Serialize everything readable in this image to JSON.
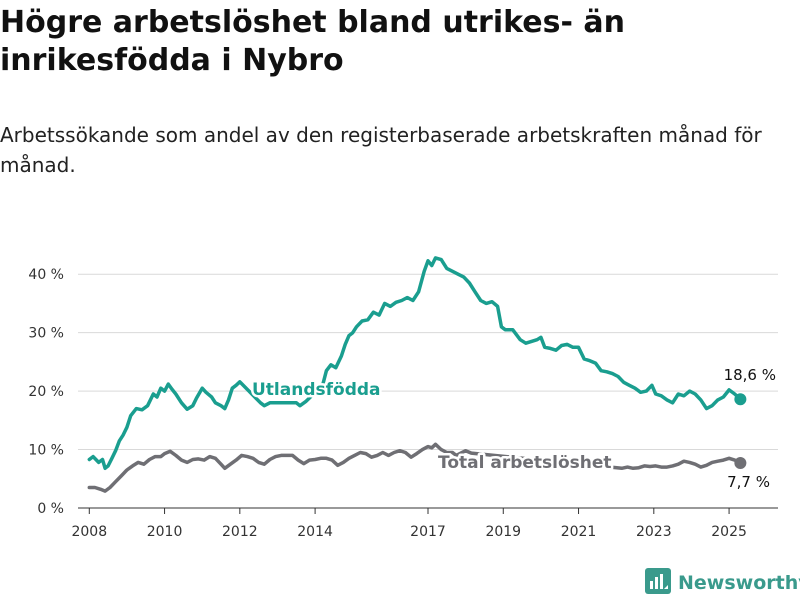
{
  "title": "Högre arbetslöshet bland utrikes- än inrikesfödda i Nybro",
  "subtitle": "Arbetssökande som andel av den registerbaserade arbetskraften månad för månad.",
  "brand": {
    "name": "Newsworthy",
    "icon": "newsworthy-logo-icon"
  },
  "colors": {
    "utlandsfodda": "#1a9e8f",
    "total": "#6f6f74",
    "grid": "#d9d9d9"
  },
  "chart_data": {
    "type": "line",
    "y_ticks": [
      "0 %",
      "10 %",
      "20 %",
      "30 %",
      "40 %"
    ],
    "ylim": [
      0,
      45
    ],
    "xlim": [
      2007.7,
      2026.3
    ],
    "x_ticks": [
      {
        "value": 2008,
        "label": "2008"
      },
      {
        "value": 2010,
        "label": "2010"
      },
      {
        "value": 2012,
        "label": "2012"
      },
      {
        "value": 2014,
        "label": "2014"
      },
      {
        "value": 2017,
        "label": "2017"
      },
      {
        "value": 2019,
        "label": "2019"
      },
      {
        "value": 2021,
        "label": "2021"
      },
      {
        "value": 2023,
        "label": "2023"
      },
      {
        "value": 2025,
        "label": "2025"
      }
    ],
    "grid": true,
    "series": [
      {
        "name": "Utlandsfödda",
        "color": "#1a9e8f",
        "end_label": "18,6 %",
        "points": [
          [
            2008.0,
            8.3
          ],
          [
            2008.1,
            8.8
          ],
          [
            2008.25,
            7.8
          ],
          [
            2008.35,
            8.3
          ],
          [
            2008.42,
            6.8
          ],
          [
            2008.5,
            7.2
          ],
          [
            2008.6,
            8.5
          ],
          [
            2008.7,
            9.8
          ],
          [
            2008.8,
            11.5
          ],
          [
            2008.9,
            12.5
          ],
          [
            2009.0,
            13.8
          ],
          [
            2009.1,
            15.8
          ],
          [
            2009.25,
            17.0
          ],
          [
            2009.4,
            16.8
          ],
          [
            2009.55,
            17.5
          ],
          [
            2009.7,
            19.5
          ],
          [
            2009.8,
            19.0
          ],
          [
            2009.9,
            20.5
          ],
          [
            2010.0,
            20.0
          ],
          [
            2010.1,
            21.2
          ],
          [
            2010.2,
            20.3
          ],
          [
            2010.3,
            19.5
          ],
          [
            2010.45,
            18.0
          ],
          [
            2010.6,
            16.9
          ],
          [
            2010.75,
            17.5
          ],
          [
            2010.85,
            18.8
          ],
          [
            2011.0,
            20.5
          ],
          [
            2011.1,
            19.8
          ],
          [
            2011.25,
            19.0
          ],
          [
            2011.35,
            18.0
          ],
          [
            2011.5,
            17.5
          ],
          [
            2011.6,
            17.0
          ],
          [
            2011.7,
            18.5
          ],
          [
            2011.8,
            20.5
          ],
          [
            2011.9,
            21.0
          ],
          [
            2012.0,
            21.6
          ],
          [
            2012.55,
            18.0
          ],
          [
            2012.65,
            17.5
          ],
          [
            2012.8,
            18.0
          ],
          [
            2013.5,
            18.0
          ],
          [
            2013.6,
            17.5
          ],
          [
            2013.75,
            18.2
          ],
          [
            2014.2,
            21.0
          ],
          [
            2014.3,
            23.5
          ],
          [
            2014.42,
            24.5
          ],
          [
            2014.55,
            24.0
          ],
          [
            2014.7,
            26.0
          ],
          [
            2014.8,
            28.0
          ],
          [
            2014.9,
            29.5
          ],
          [
            2015.0,
            30.0
          ],
          [
            2015.1,
            31.0
          ],
          [
            2015.25,
            32.0
          ],
          [
            2015.4,
            32.2
          ],
          [
            2015.55,
            33.5
          ],
          [
            2015.7,
            33.0
          ],
          [
            2015.85,
            35.0
          ],
          [
            2016.0,
            34.5
          ],
          [
            2016.15,
            35.2
          ],
          [
            2016.3,
            35.5
          ],
          [
            2016.45,
            36.0
          ],
          [
            2016.6,
            35.5
          ],
          [
            2016.75,
            37.0
          ],
          [
            2016.9,
            40.5
          ],
          [
            2017.0,
            42.3
          ],
          [
            2017.1,
            41.5
          ],
          [
            2017.2,
            42.8
          ],
          [
            2017.35,
            42.5
          ],
          [
            2017.5,
            41.0
          ],
          [
            2017.65,
            40.5
          ],
          [
            2017.8,
            40.0
          ],
          [
            2017.95,
            39.5
          ],
          [
            2018.1,
            38.5
          ],
          [
            2018.25,
            37.0
          ],
          [
            2018.4,
            35.5
          ],
          [
            2018.55,
            35.0
          ],
          [
            2018.7,
            35.3
          ],
          [
            2018.85,
            34.5
          ],
          [
            2018.95,
            31.0
          ],
          [
            2019.05,
            30.5
          ],
          [
            2019.25,
            30.5
          ],
          [
            2019.45,
            28.8
          ],
          [
            2019.6,
            28.2
          ],
          [
            2019.75,
            28.5
          ],
          [
            2019.9,
            28.8
          ],
          [
            2020.0,
            29.2
          ],
          [
            2020.1,
            27.5
          ],
          [
            2020.25,
            27.3
          ],
          [
            2020.4,
            27.0
          ],
          [
            2020.55,
            27.8
          ],
          [
            2020.7,
            28.0
          ],
          [
            2020.85,
            27.5
          ],
          [
            2021.0,
            27.5
          ],
          [
            2021.15,
            25.5
          ],
          [
            2021.3,
            25.2
          ],
          [
            2021.45,
            24.8
          ],
          [
            2021.6,
            23.5
          ],
          [
            2021.75,
            23.3
          ],
          [
            2021.9,
            23.0
          ],
          [
            2022.05,
            22.5
          ],
          [
            2022.2,
            21.5
          ],
          [
            2022.35,
            21.0
          ],
          [
            2022.5,
            20.5
          ],
          [
            2022.65,
            19.8
          ],
          [
            2022.8,
            20.0
          ],
          [
            2022.95,
            21.0
          ],
          [
            2023.05,
            19.5
          ],
          [
            2023.2,
            19.2
          ],
          [
            2023.35,
            18.5
          ],
          [
            2023.5,
            18.0
          ],
          [
            2023.65,
            19.5
          ],
          [
            2023.8,
            19.2
          ],
          [
            2023.95,
            20.0
          ],
          [
            2024.1,
            19.5
          ],
          [
            2024.25,
            18.5
          ],
          [
            2024.4,
            17.0
          ],
          [
            2024.55,
            17.5
          ],
          [
            2024.7,
            18.5
          ],
          [
            2024.85,
            19.0
          ],
          [
            2025.0,
            20.2
          ],
          [
            2025.15,
            19.5
          ],
          [
            2025.3,
            18.6
          ]
        ]
      },
      {
        "name": "Total arbetslöshet",
        "color": "#6f6f74",
        "end_label": "7,7 %",
        "points": [
          [
            2008.0,
            3.5
          ],
          [
            2008.15,
            3.5
          ],
          [
            2008.3,
            3.2
          ],
          [
            2008.42,
            2.9
          ],
          [
            2008.55,
            3.5
          ],
          [
            2008.7,
            4.5
          ],
          [
            2008.85,
            5.5
          ],
          [
            2009.0,
            6.5
          ],
          [
            2009.15,
            7.2
          ],
          [
            2009.3,
            7.8
          ],
          [
            2009.45,
            7.5
          ],
          [
            2009.6,
            8.3
          ],
          [
            2009.75,
            8.8
          ],
          [
            2009.9,
            8.8
          ],
          [
            2010.0,
            9.3
          ],
          [
            2010.15,
            9.7
          ],
          [
            2010.3,
            9.0
          ],
          [
            2010.45,
            8.2
          ],
          [
            2010.6,
            7.8
          ],
          [
            2010.75,
            8.3
          ],
          [
            2010.9,
            8.4
          ],
          [
            2011.05,
            8.2
          ],
          [
            2011.2,
            8.8
          ],
          [
            2011.35,
            8.5
          ],
          [
            2011.5,
            7.5
          ],
          [
            2011.6,
            6.8
          ],
          [
            2011.75,
            7.5
          ],
          [
            2011.9,
            8.2
          ],
          [
            2012.05,
            9.0
          ],
          [
            2012.2,
            8.8
          ],
          [
            2012.35,
            8.5
          ],
          [
            2012.5,
            7.8
          ],
          [
            2012.65,
            7.5
          ],
          [
            2012.8,
            8.3
          ],
          [
            2012.95,
            8.8
          ],
          [
            2013.1,
            9.0
          ],
          [
            2013.25,
            9.0
          ],
          [
            2013.4,
            9.0
          ],
          [
            2013.55,
            8.2
          ],
          [
            2013.7,
            7.6
          ],
          [
            2013.85,
            8.2
          ],
          [
            2014.0,
            8.3
          ],
          [
            2014.15,
            8.5
          ],
          [
            2014.3,
            8.5
          ],
          [
            2014.45,
            8.2
          ],
          [
            2014.6,
            7.3
          ],
          [
            2014.75,
            7.8
          ],
          [
            2014.9,
            8.5
          ],
          [
            2015.05,
            9.0
          ],
          [
            2015.2,
            9.5
          ],
          [
            2015.35,
            9.3
          ],
          [
            2015.5,
            8.7
          ],
          [
            2015.65,
            9.0
          ],
          [
            2015.8,
            9.5
          ],
          [
            2015.95,
            9.0
          ],
          [
            2016.1,
            9.5
          ],
          [
            2016.25,
            9.8
          ],
          [
            2016.4,
            9.5
          ],
          [
            2016.55,
            8.7
          ],
          [
            2016.7,
            9.3
          ],
          [
            2016.85,
            10.0
          ],
          [
            2017.0,
            10.5
          ],
          [
            2017.1,
            10.3
          ],
          [
            2017.2,
            10.9
          ],
          [
            2017.35,
            10.0
          ],
          [
            2017.5,
            9.5
          ],
          [
            2017.65,
            9.5
          ],
          [
            2017.75,
            9.0
          ],
          [
            2018.0,
            9.8
          ],
          [
            2018.15,
            9.4
          ],
          [
            2022.15,
            6.8
          ],
          [
            2022.3,
            7.0
          ],
          [
            2022.45,
            6.8
          ],
          [
            2022.6,
            6.9
          ],
          [
            2022.75,
            7.2
          ],
          [
            2022.9,
            7.1
          ],
          [
            2023.05,
            7.2
          ],
          [
            2023.2,
            7.0
          ],
          [
            2023.35,
            7.0
          ],
          [
            2023.5,
            7.2
          ],
          [
            2023.65,
            7.5
          ],
          [
            2023.8,
            8.0
          ],
          [
            2023.95,
            7.8
          ],
          [
            2024.1,
            7.5
          ],
          [
            2024.25,
            7.0
          ],
          [
            2024.4,
            7.3
          ],
          [
            2024.55,
            7.8
          ],
          [
            2024.7,
            8.0
          ],
          [
            2024.85,
            8.2
          ],
          [
            2025.0,
            8.5
          ],
          [
            2025.15,
            8.2
          ],
          [
            2025.3,
            7.7
          ]
        ]
      }
    ]
  }
}
